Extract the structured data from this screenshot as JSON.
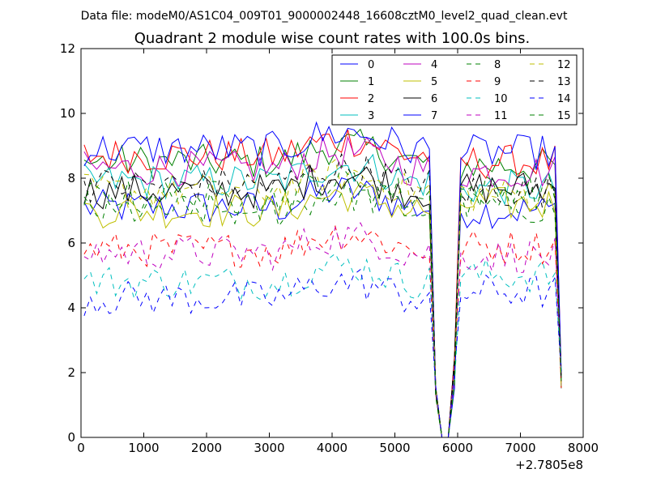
{
  "chart_data": {
    "type": "line",
    "suptitle": "Data file: modeM0/AS1C04_009T01_9000002448_16608cztM0_level2_quad_clean.evt",
    "title": "Quadrant 2 module wise count rates with 100.0s bins.",
    "xlabel": "",
    "ylabel": "",
    "xlim": [
      0,
      8000
    ],
    "ylim": [
      0,
      12
    ],
    "x_offset_label": "+2.7805e8",
    "xticks": [
      0,
      1000,
      2000,
      3000,
      4000,
      5000,
      6000,
      7000,
      8000
    ],
    "yticks": [
      0,
      2,
      4,
      6,
      8,
      10,
      12
    ],
    "legend_position": "top-right",
    "legend_columns": 4,
    "gap": {
      "drop_start": 5550,
      "zero_from": 5750,
      "zero_to": 5850,
      "recover_at": 6050,
      "end_drop_at": 7650
    },
    "series": [
      {
        "name": "0",
        "color": "#0000ff",
        "style": "solid",
        "approx_mean": 7.1,
        "late_mean": 7.0
      },
      {
        "name": "1",
        "color": "#008000",
        "style": "solid",
        "approx_mean": 8.5,
        "late_mean": 8.4
      },
      {
        "name": "2",
        "color": "#ff0000",
        "style": "solid",
        "approx_mean": 8.7,
        "late_mean": 8.5
      },
      {
        "name": "3",
        "color": "#00bfbf",
        "style": "solid",
        "approx_mean": 7.9,
        "late_mean": 7.7
      },
      {
        "name": "4",
        "color": "#bf00bf",
        "style": "solid",
        "approx_mean": 8.3,
        "late_mean": 8.2
      },
      {
        "name": "5",
        "color": "#bfbf00",
        "style": "solid",
        "approx_mean": 7.0,
        "late_mean": 7.2
      },
      {
        "name": "6",
        "color": "#000000",
        "style": "solid",
        "approx_mean": 7.6,
        "late_mean": 7.7
      },
      {
        "name": "7",
        "color": "#0000ff",
        "style": "solid",
        "approx_mean": 8.9,
        "late_mean": 8.8
      },
      {
        "name": "8",
        "color": "#008000",
        "style": "dashed",
        "approx_mean": 7.0,
        "late_mean": 7.1
      },
      {
        "name": "9",
        "color": "#ff0000",
        "style": "dashed",
        "approx_mean": 5.8,
        "late_mean": 5.9
      },
      {
        "name": "10",
        "color": "#00bfbf",
        "style": "dashed",
        "approx_mean": 4.8,
        "late_mean": 5.0
      },
      {
        "name": "11",
        "color": "#bf00bf",
        "style": "dashed",
        "approx_mean": 5.7,
        "late_mean": 5.6
      },
      {
        "name": "12",
        "color": "#bfbf00",
        "style": "dashed",
        "approx_mean": 7.6,
        "late_mean": 7.5
      },
      {
        "name": "13",
        "color": "#000000",
        "style": "dashed",
        "approx_mean": 7.8,
        "late_mean": 7.6
      },
      {
        "name": "14",
        "color": "#0000ff",
        "style": "dashed",
        "approx_mean": 4.3,
        "late_mean": 4.5
      },
      {
        "name": "15",
        "color": "#008000",
        "style": "dashed",
        "approx_mean": 7.4,
        "late_mean": 7.6
      }
    ]
  }
}
